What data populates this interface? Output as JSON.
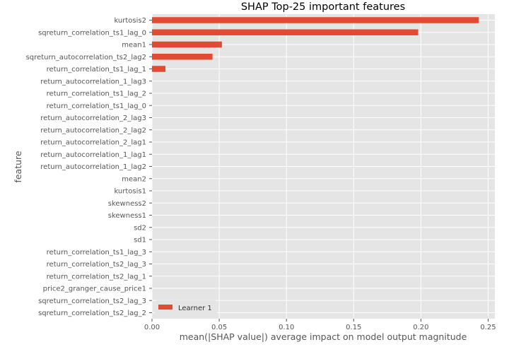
{
  "chart_data": {
    "type": "bar",
    "orientation": "horizontal",
    "title": "SHAP Top-25 important features",
    "xlabel": "mean(|SHAP value|) average impact on model output magnitude",
    "ylabel": "feature",
    "xlim": [
      0.0,
      0.255
    ],
    "xticks": [
      0.0,
      0.05,
      0.1,
      0.15,
      0.2,
      0.25
    ],
    "xtick_labels": [
      "0.00",
      "0.05",
      "0.10",
      "0.15",
      "0.20",
      "0.25"
    ],
    "grid": true,
    "legend_position": "bottom-left",
    "categories": [
      "kurtosis2",
      "sqreturn_correlation_ts1_lag_0",
      "mean1",
      "sqreturn_autocorrelation_ts2_lag2",
      "return_correlation_ts1_lag_1",
      "return_autocorrelation_1_lag3",
      "return_correlation_ts1_lag_2",
      "return_correlation_ts1_lag_0",
      "return_autocorrelation_2_lag3",
      "return_autocorrelation_2_lag2",
      "return_autocorrelation_2_lag1",
      "return_autocorrelation_1_lag1",
      "return_autocorrelation_1_lag2",
      "mean2",
      "kurtosis1",
      "skewness2",
      "skewness1",
      "sd2",
      "sd1",
      "return_correlation_ts1_lag_3",
      "return_correlation_ts2_lag_3",
      "return_correlation_ts2_lag_1",
      "price2_granger_cause_price1",
      "sqreturn_correlation_ts2_lag_3",
      "sqreturn_correlation_ts2_lag_2"
    ],
    "series": [
      {
        "name": "Learner 1",
        "color": "#e24a33",
        "values": [
          0.243,
          0.198,
          0.052,
          0.045,
          0.01,
          0,
          0,
          0,
          0,
          0,
          0,
          0,
          0,
          0,
          0,
          0,
          0,
          0,
          0,
          0,
          0,
          0,
          0,
          0,
          0
        ]
      }
    ]
  }
}
